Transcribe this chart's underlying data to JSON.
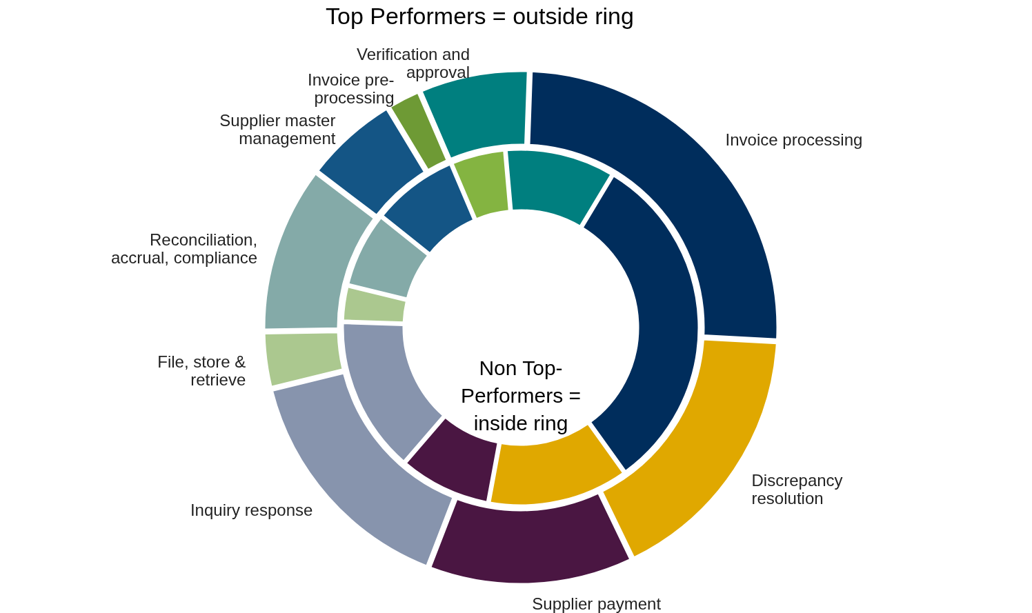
{
  "chart_data": {
    "type": "donut",
    "title": "Top Performers = outside ring",
    "annotations": [
      "Non Top-Performers = inside ring"
    ],
    "categories": [
      "Invoice processing",
      "Discrepancy resolution",
      "Supplier payment",
      "Inquiry response",
      "File, store & retrieve",
      "Reconciliation, accrual, compliance",
      "Supplier master management",
      "Invoice pre-processing",
      "Verification and approval"
    ],
    "series": [
      {
        "values": [
          25.3,
          17,
          13,
          15.3,
          3.6,
          10.6,
          6,
          2.2,
          7
        ],
        "colors": [
          "#002d5c",
          "#e0a800",
          "#4a1642",
          "#8794ad",
          "#abc88f",
          "#84aaa8",
          "#145585",
          "#6e9a35",
          "#007f7f"
        ]
      },
      {
        "values": [
          31.5,
          12.8,
          8.4,
          14.2,
          3.3,
          6.9,
          7.9,
          5,
          10
        ],
        "colors": [
          "#002d5c",
          "#e0a800",
          "#4a1642",
          "#8794ad",
          "#abc88f",
          "#84aaa8",
          "#145585",
          "#84b441",
          "#007f7f"
        ]
      }
    ]
  }
}
